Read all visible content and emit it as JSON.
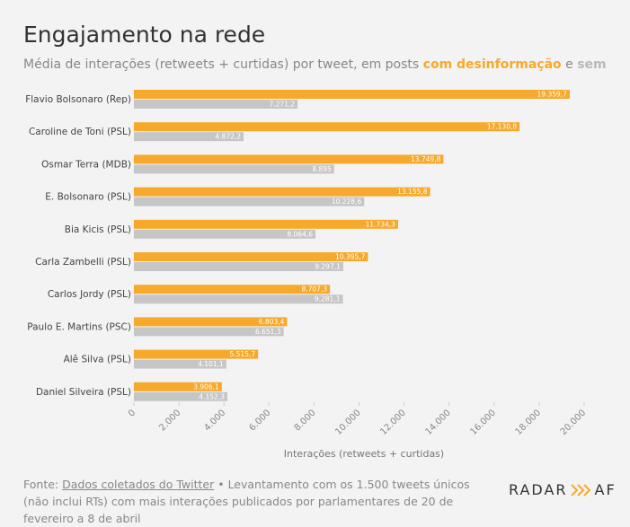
{
  "chart_data": {
    "type": "bar",
    "orientation": "horizontal",
    "title": "Engajamento na rede",
    "subtitle": "Média de interações (retweets + curtidas) por tweet, em posts",
    "subtitle_conjunction": "e",
    "x_label": "Interações (retweets + curtidas)",
    "categories": [
      "Flavio Bolsonaro (Rep)",
      "Caroline de Toni (PSL)",
      "Osmar Terra (MDB)",
      "E. Bolsonaro (PSL)",
      "Bia Kicis (PSL)",
      "Carla Zambelli (PSL)",
      "Carlos Jordy (PSL)",
      "Paulo E. Martins (PSC)",
      "Alê Silva (PSL)",
      "Daniel Silveira (PSL)"
    ],
    "series": [
      {
        "name": "com desinformação",
        "color": "#f7a92b",
        "values": [
          19359.7,
          17130.8,
          13749.8,
          13155.8,
          11734.3,
          10395.7,
          8707.3,
          6803.4,
          5515.7,
          3906.1
        ],
        "value_labels": [
          "19.359,7",
          "17.130,8",
          "13.749,8",
          "13.155,8",
          "11.734,3",
          "10.395,7",
          "8.707,3",
          "6.803,4",
          "5.515,7",
          "3.906,1"
        ]
      },
      {
        "name": "sem",
        "color": "#c6c6c6",
        "values": [
          7271.2,
          4872.2,
          8895,
          10228.6,
          8064.6,
          9297.1,
          9281.1,
          6651.3,
          4101.1,
          4152.3
        ],
        "value_labels": [
          "7.271,2",
          "4.872,2",
          "8.895",
          "10.228,6",
          "8.064,6",
          "9.297,1",
          "9.281,1",
          "6.651,3",
          "4.101,1",
          "4.152,3"
        ]
      }
    ],
    "xlim": [
      0,
      20000
    ],
    "xticks": [
      0,
      {
        "value": 2000,
        "label": "2.000"
      },
      {
        "value": 4000,
        "label": "4.000"
      },
      {
        "value": 6000,
        "label": "6.000"
      },
      {
        "value": 8000,
        "label": "8.000"
      },
      {
        "value": 10000,
        "label": "10.000"
      },
      {
        "value": 12000,
        "label": "12.000"
      },
      {
        "value": 14000,
        "label": "14.000"
      },
      {
        "value": 16000,
        "label": "16.000"
      },
      {
        "value": 18000,
        "label": "18.000"
      },
      {
        "value": 20000,
        "label": "20.000"
      }
    ],
    "grid": false
  },
  "footer": {
    "source_label": "Fonte:",
    "source_link": "Dados coletados do Twitter",
    "note": "• Levantamento com os 1.500 tweets únicos (não inclui RTs) com mais interações publicados por parlamentares de 20 de fevereiro a 8 de abril"
  },
  "logo": {
    "left": "RADAR",
    "right": "AF"
  }
}
